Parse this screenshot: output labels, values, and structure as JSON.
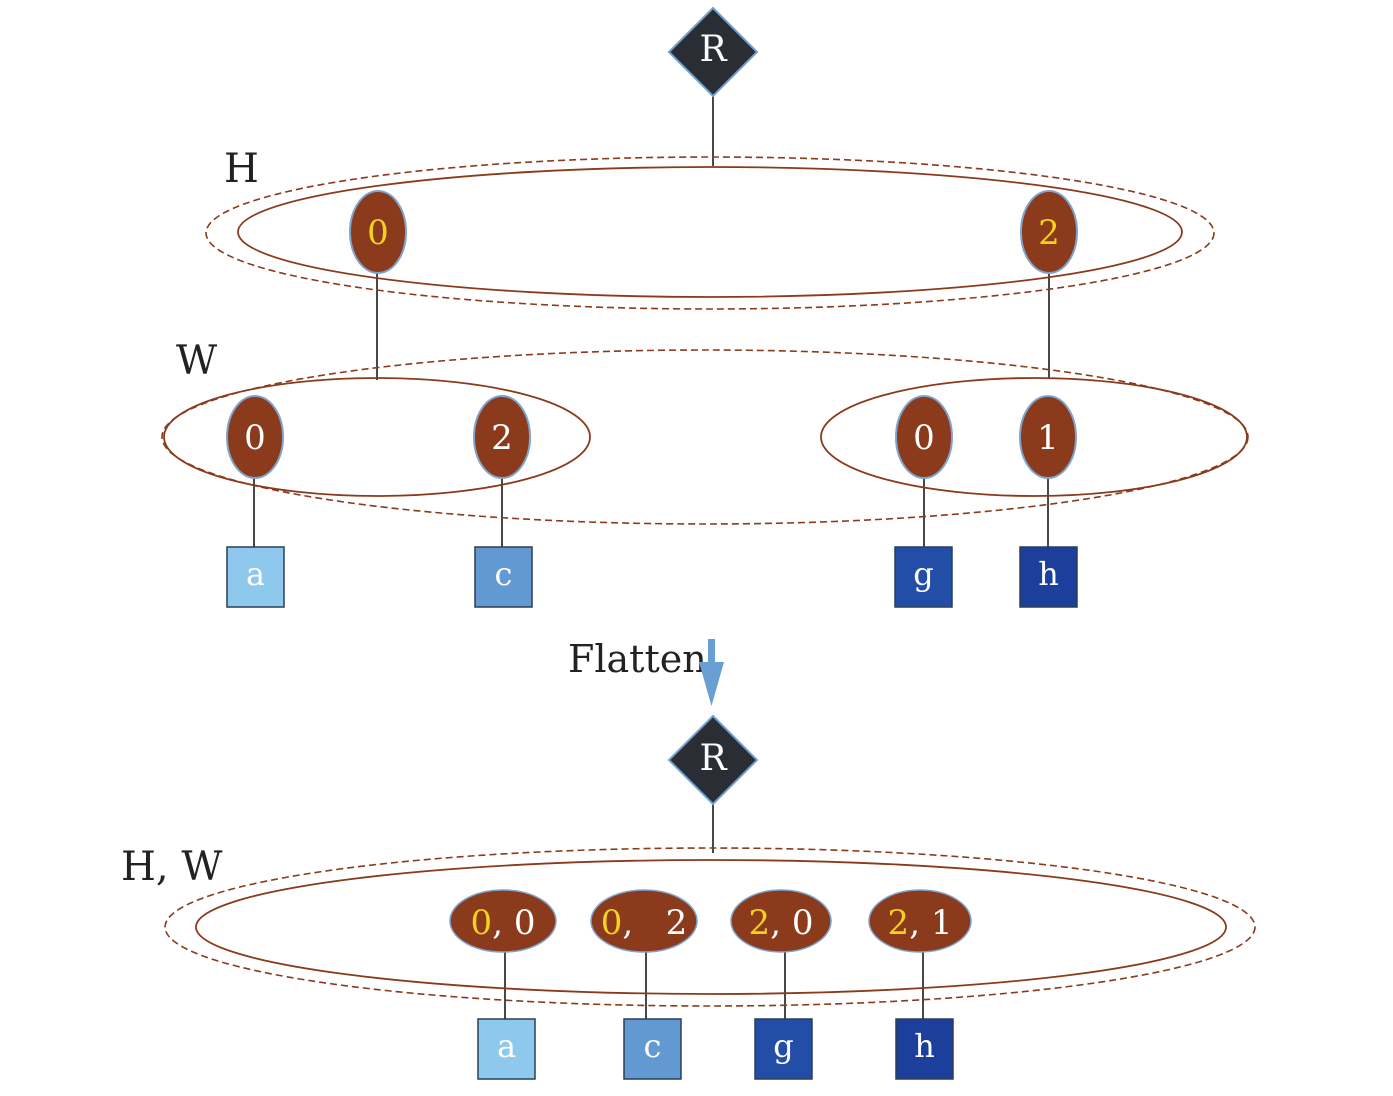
{
  "colors": {
    "root_fill": "#2a2d34",
    "root_stroke": "#6f9fd0",
    "node_fill": "#8b3a1c",
    "node_stroke": "#7ea3cc",
    "ring": "#8b3a1c",
    "edge": "#1a1a1a",
    "highlight_digit": "#f2d21c",
    "node_text": "#ffffff",
    "label_text": "#222222",
    "arrow": "#6a9fd4",
    "leaf_a": "#8ec8ec",
    "leaf_c": "#6399d2",
    "leaf_g": "#234ea8",
    "leaf_h": "#1c3f9c"
  },
  "top": {
    "root_label": "R",
    "h_label": "H",
    "w_label": "W",
    "h_nodes": [
      {
        "text": "0"
      },
      {
        "text": "2"
      }
    ],
    "w_left_nodes": [
      {
        "text": "0"
      },
      {
        "text": "2"
      }
    ],
    "w_right_nodes": [
      {
        "text": "0"
      },
      {
        "text": "1"
      }
    ],
    "leaves": [
      {
        "text": "a"
      },
      {
        "text": "c"
      },
      {
        "text": "g"
      },
      {
        "text": "h"
      }
    ]
  },
  "transition": {
    "label": "Flatten",
    "icon": "down-arrow-icon"
  },
  "bottom": {
    "root_label": "R",
    "hw_label": "H, W",
    "nodes": [
      {
        "h": "0",
        "sep": ",",
        "w": "0"
      },
      {
        "h": "0",
        "sep": ",",
        "w": "2"
      },
      {
        "h": "2",
        "sep": ",",
        "w": "0"
      },
      {
        "h": "2",
        "sep": ",",
        "w": "1"
      }
    ],
    "leaves": [
      {
        "text": "a"
      },
      {
        "text": "c"
      },
      {
        "text": "g"
      },
      {
        "text": "h"
      }
    ]
  }
}
